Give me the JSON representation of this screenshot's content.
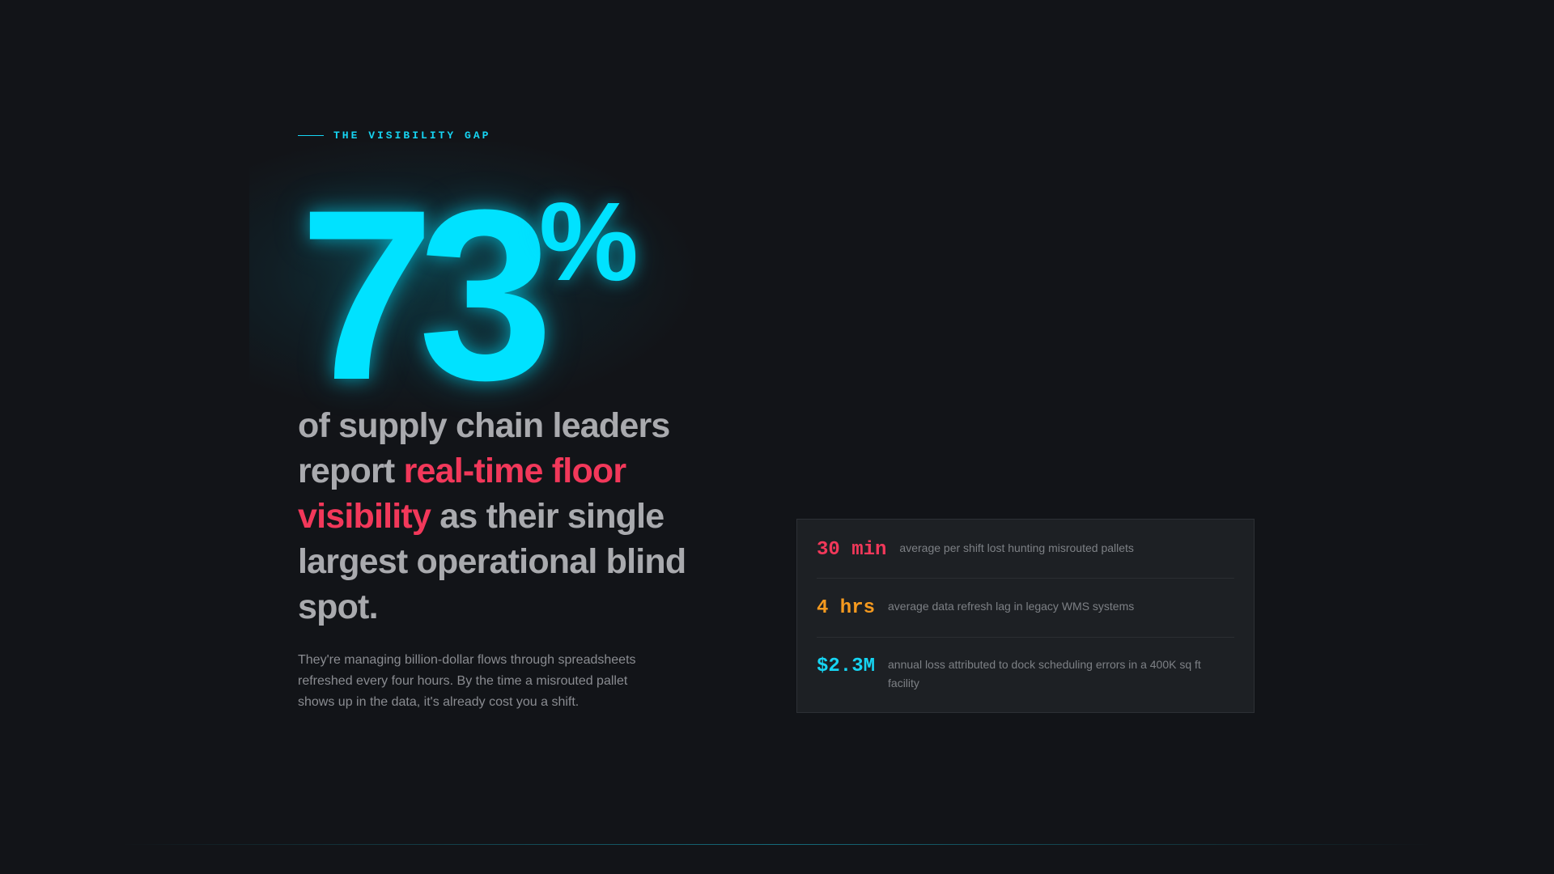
{
  "eyebrow": {
    "label": "THE VISIBILITY GAP"
  },
  "hero": {
    "number": "73",
    "unit": "%",
    "headline": {
      "part1": "of supply chain leaders report ",
      "highlight": "real-time floor visibility",
      "part2": " as their single largest operational blind spot."
    },
    "body": "They're managing billion-dollar flows through spreadsheets refreshed every four hours. By the time a misrouted pallet shows up in the data, it's already cost you a shift."
  },
  "stats": [
    {
      "value": "30 min",
      "description": "average per shift lost hunting misrouted pallets",
      "color": "#f2385a"
    },
    {
      "value": "4 hrs",
      "description": "average data refresh lag in legacy WMS systems",
      "color": "#f59a1f"
    },
    {
      "value": "$2.3M",
      "description": "annual loss attributed to dock scheduling errors in a 400K sq ft facility",
      "color": "#16d4f2"
    }
  ],
  "colors": {
    "background": "#121418",
    "accent_cyan": "#00e2ff",
    "accent_red": "#f2385a",
    "accent_orange": "#f59a1f",
    "panel": "#1d2024"
  }
}
